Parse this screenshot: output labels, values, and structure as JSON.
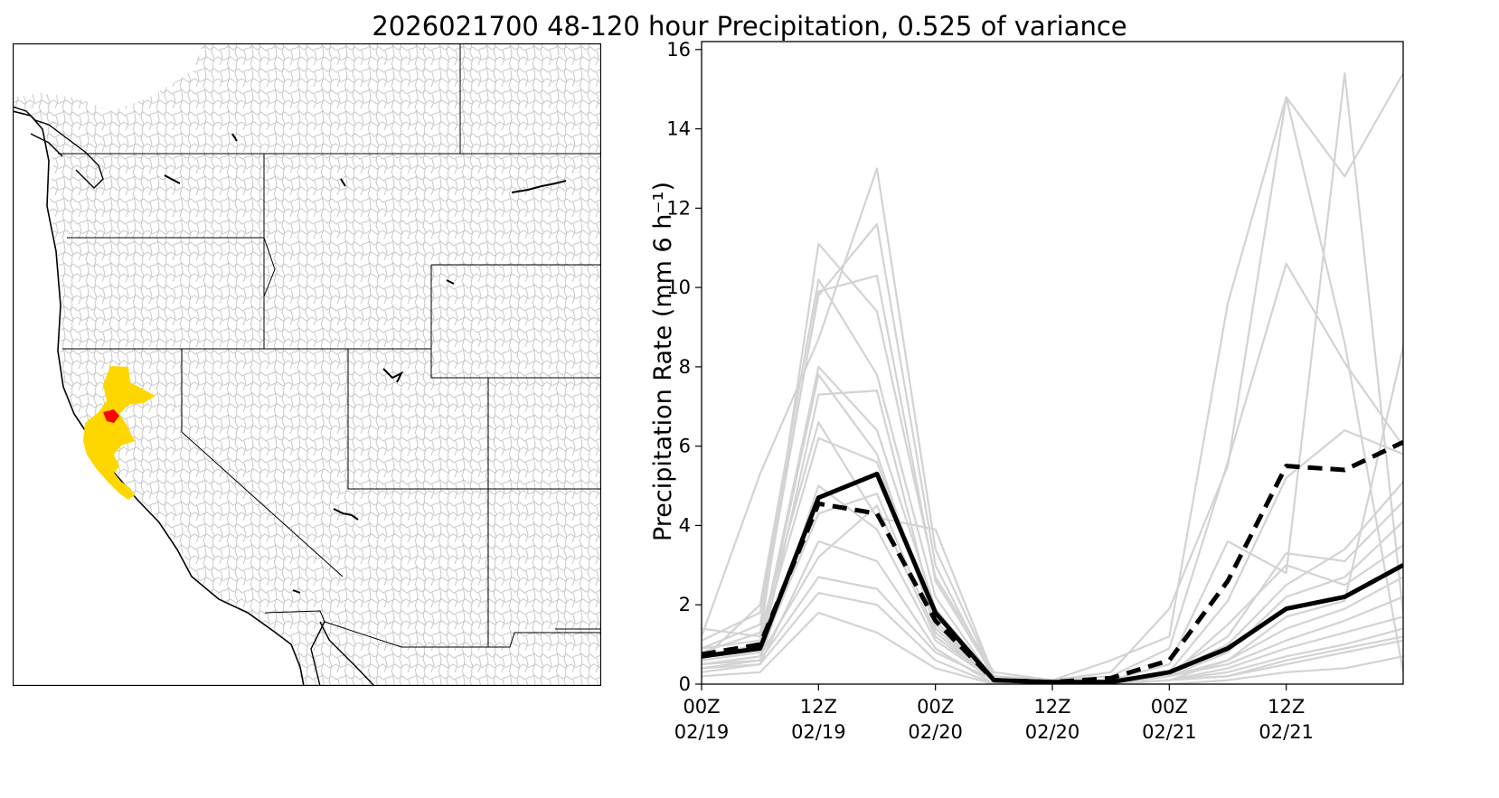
{
  "figure": {
    "title": "2026021700 48-120 hour Precipitation, 0.525 of variance"
  },
  "map_panel": {
    "colors": {
      "region_primary": "#ffd700",
      "region_core": "#ff0000",
      "basins": "#c8c8c8",
      "boundaries": "#000000"
    }
  },
  "chart_data": {
    "type": "line",
    "ylabel": "Precipitation Rate (mm 6 h⁻¹)",
    "xlabel": "",
    "title": "",
    "x_tick_labels": [
      {
        "line1": "00Z",
        "line2": "02/19"
      },
      {
        "line1": "12Z",
        "line2": "02/19"
      },
      {
        "line1": "00Z",
        "line2": "02/20"
      },
      {
        "line1": "12Z",
        "line2": "02/20"
      },
      {
        "line1": "00Z",
        "line2": "02/21"
      },
      {
        "line1": "12Z",
        "line2": "02/21"
      }
    ],
    "x_ticks": [
      0,
      12,
      24,
      36,
      48,
      60
    ],
    "x": [
      0,
      6,
      12,
      18,
      24,
      30,
      36,
      42,
      48,
      54,
      60,
      66,
      72
    ],
    "xlim": [
      0,
      72
    ],
    "ylim": [
      0,
      16.2
    ],
    "y_ticks": [
      0,
      2,
      4,
      6,
      8,
      10,
      12,
      14,
      16
    ],
    "grid": false,
    "legend": "none",
    "series": [
      {
        "style": "solid-black",
        "values": [
          0.7,
          0.9,
          4.7,
          5.3,
          1.8,
          0.1,
          0.05,
          0.05,
          0.3,
          0.9,
          1.9,
          2.2,
          3.0
        ]
      },
      {
        "style": "dashed-black",
        "values": [
          0.75,
          1.0,
          4.55,
          4.3,
          1.6,
          0.1,
          0.05,
          0.15,
          0.6,
          2.6,
          5.5,
          5.4,
          6.1
        ]
      }
    ],
    "ensemble_members": [
      [
        1.4,
        1.2,
        11.1,
        9.4,
        2.7,
        0.3,
        0.1,
        0.3,
        1.9,
        5.5,
        14.8,
        12.8,
        15.4
      ],
      [
        1.2,
        5.3,
        8.7,
        13.0,
        3.4,
        0.2,
        0.1,
        0.6,
        1.2,
        9.6,
        14.8,
        8.6,
        0.3
      ],
      [
        0.6,
        2.0,
        10.2,
        7.8,
        2.2,
        0.1,
        0.1,
        0.2,
        0.9,
        5.6,
        10.6,
        8.1,
        6.0
      ],
      [
        0.9,
        1.5,
        9.9,
        10.3,
        2.6,
        0.2,
        0.1,
        0.1,
        0.5,
        3.6,
        2.8,
        15.4,
        1.8
      ],
      [
        1.1,
        1.8,
        9.8,
        11.6,
        3.0,
        0.1,
        0.0,
        0.1,
        0.3,
        2.1,
        5.2,
        6.4,
        5.8
      ],
      [
        0.7,
        0.9,
        7.8,
        5.8,
        1.4,
        0.1,
        0.0,
        0.1,
        0.3,
        1.2,
        3.3,
        3.1,
        4.6
      ],
      [
        0.5,
        0.7,
        7.3,
        7.4,
        1.6,
        0.1,
        0.0,
        0.0,
        0.2,
        0.8,
        2.2,
        2.7,
        4.1
      ],
      [
        0.8,
        1.3,
        6.6,
        4.2,
        3.9,
        0.2,
        0.1,
        0.1,
        0.2,
        1.5,
        3.0,
        2.5,
        3.5
      ],
      [
        0.4,
        0.6,
        5.0,
        3.9,
        1.1,
        0.1,
        0.0,
        0.0,
        0.1,
        0.6,
        1.4,
        1.9,
        2.7
      ],
      [
        0.6,
        0.8,
        4.3,
        4.8,
        1.3,
        0.1,
        0.0,
        0.0,
        0.2,
        0.5,
        1.1,
        1.6,
        2.2
      ],
      [
        0.3,
        0.5,
        3.6,
        3.1,
        0.9,
        0.0,
        0.0,
        0.0,
        0.1,
        0.4,
        0.9,
        1.3,
        1.7
      ],
      [
        0.5,
        0.6,
        2.7,
        2.4,
        0.8,
        0.1,
        0.0,
        0.0,
        0.1,
        0.3,
        0.7,
        1.0,
        1.4
      ],
      [
        0.4,
        0.5,
        2.3,
        2.0,
        0.6,
        0.0,
        0.0,
        0.0,
        0.1,
        0.2,
        0.5,
        0.8,
        1.1
      ],
      [
        0.9,
        1.1,
        6.2,
        5.6,
        1.5,
        0.1,
        0.0,
        0.1,
        0.2,
        0.6,
        1.7,
        2.1,
        8.5
      ],
      [
        0.2,
        0.3,
        1.8,
        1.3,
        0.4,
        0.0,
        0.0,
        0.0,
        0.0,
        0.1,
        0.3,
        0.4,
        0.7
      ],
      [
        0.7,
        1.0,
        8.0,
        6.4,
        1.9,
        0.1,
        0.0,
        0.0,
        0.3,
        1.0,
        2.5,
        3.4,
        5.1
      ],
      [
        0.5,
        0.7,
        3.2,
        4.5,
        1.2,
        0.1,
        0.0,
        0.0,
        0.1,
        0.2,
        0.6,
        0.9,
        1.2
      ]
    ],
    "colors": {
      "ensemble": "#d3d3d3",
      "highlight": "#000000"
    }
  }
}
